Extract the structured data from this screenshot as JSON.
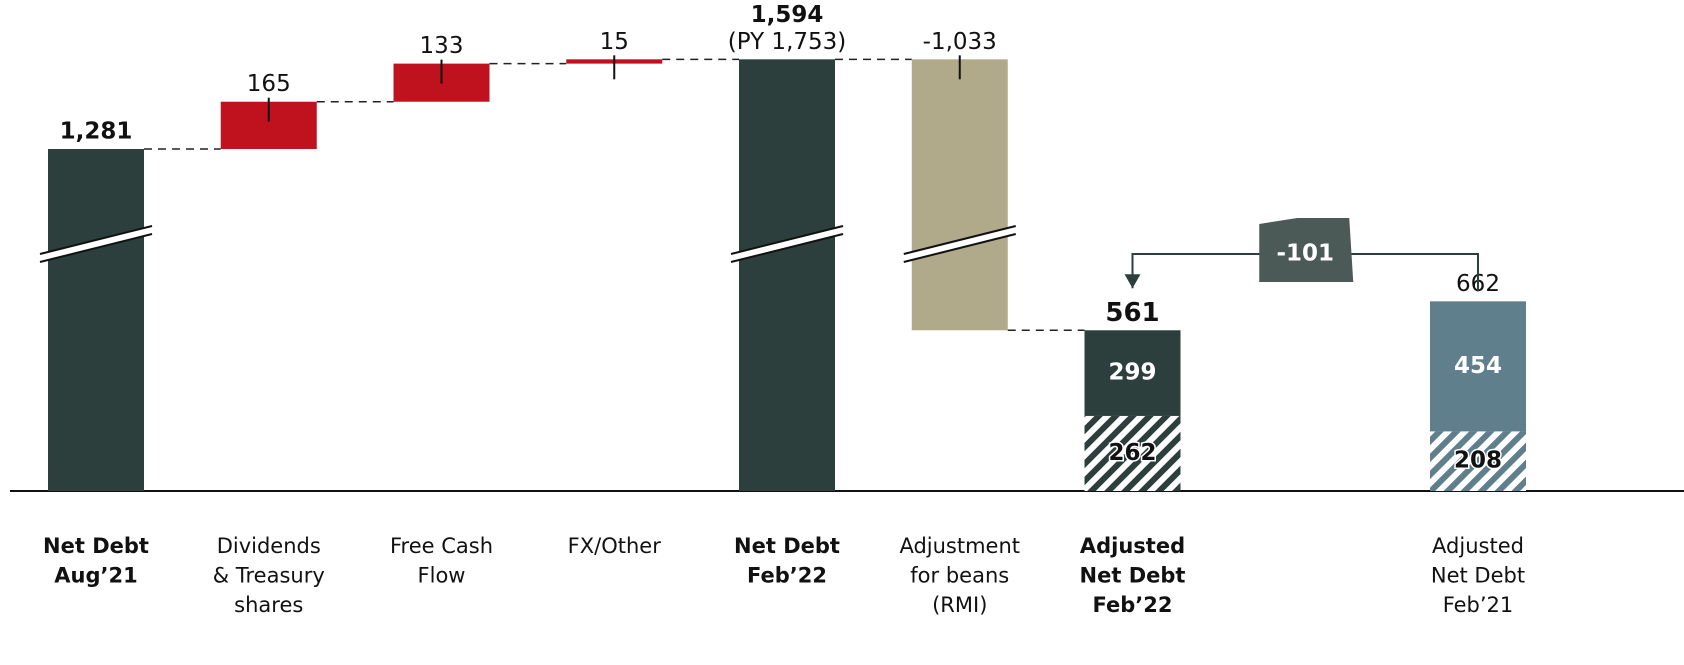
{
  "chart_data": {
    "type": "waterfall",
    "categories": [
      [
        "Net Debt",
        "Aug’21"
      ],
      [
        "Dividends",
        "& Treasury",
        "shares"
      ],
      [
        "Free Cash",
        "Flow"
      ],
      [
        "FX/Other"
      ],
      [
        "Net Debt",
        "Feb’22"
      ],
      [
        "Adjustment",
        "for beans",
        "(RMI)"
      ],
      [
        "Adjusted",
        "Net Debt",
        "Feb’22"
      ],
      null,
      [
        "Adjusted",
        "Net Debt",
        "Feb’21"
      ]
    ],
    "values": [
      1281,
      165,
      133,
      15,
      1594,
      -1033,
      561,
      null,
      662
    ],
    "value_labels": [
      "1,281",
      "165",
      "133",
      "15",
      "1,594",
      "-1,033",
      "561",
      null,
      "662"
    ],
    "sublabels": [
      null,
      null,
      null,
      null,
      "(PY 1,753)",
      null,
      null,
      null,
      null
    ],
    "measure": [
      "total",
      "relative",
      "relative",
      "relative",
      "total",
      "relative",
      "total",
      null,
      "total"
    ],
    "bold": [
      true,
      false,
      false,
      false,
      true,
      false,
      true,
      null,
      false
    ],
    "stack_parts": [
      null,
      null,
      null,
      null,
      null,
      null,
      {
        "upper": 299,
        "lower": 262
      },
      null,
      {
        "upper": 454,
        "lower": 208
      }
    ],
    "bridge": {
      "value": -101,
      "label": "-101",
      "from": 8,
      "to": 6
    },
    "colors": {
      "total": "#2c3f3d",
      "increase": "#c0111f",
      "decrease": "#b0aa8a",
      "prior": "#5f7f8c"
    },
    "axis_break": true
  }
}
